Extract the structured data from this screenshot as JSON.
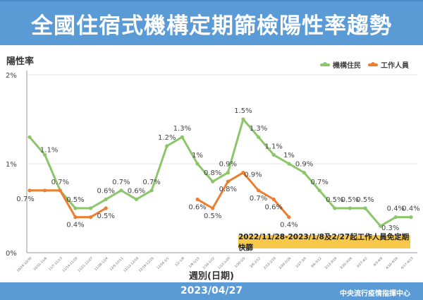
{
  "header": {
    "title": "全國住宿式機構定期篩檢陽性率趨勢"
  },
  "footer": {
    "date": "2023/04/27",
    "org": "中央流行疫情指揮中心"
  },
  "colors": {
    "header_bg": "#5b9bd5",
    "residents": "#8cc66b",
    "staff": "#ed7d31",
    "note_bg": "#f7c84a"
  },
  "chart_data": {
    "type": "line",
    "title": "全國住宿式機構定期篩檢陽性率趨勢",
    "ylabel": "陽性率",
    "xlabel": "週別(日期)",
    "ylim": [
      0,
      2
    ],
    "yticks": [
      "0%",
      "1%",
      "2%"
    ],
    "grid": true,
    "legend_position": "top-right",
    "categories": [
      "10/24-10/30",
      "10/31-11/6",
      "11/7-11/13",
      "11/14-11/20",
      "11/21-11/27",
      "11/28-12/4",
      "12/5-12/11",
      "12/12-12/18",
      "12/19-12/25",
      "12/26-1/1",
      "1/2-1/8",
      "1/9-1/15",
      "1/16-1/22",
      "1/23-1/29",
      "1/30-2/5",
      "2/6-2/12",
      "2/13-2/19",
      "2/20-2/26",
      "2/27-3/5",
      "3/6-3/12",
      "3/13-3/19",
      "3/20-3/26",
      "3/27-4/2",
      "4/3-4/9",
      "4/10-4/16",
      "4/17-4/23"
    ],
    "series": [
      {
        "name": "機構住民",
        "color": "#8cc66b",
        "values": [
          1.3,
          1.1,
          0.7,
          0.5,
          0.5,
          0.6,
          0.7,
          0.6,
          0.7,
          1.2,
          1.3,
          1.0,
          0.8,
          0.9,
          1.5,
          1.3,
          1.1,
          1.0,
          0.9,
          0.7,
          0.5,
          0.5,
          0.5,
          0.3,
          0.4,
          0.4
        ],
        "labels": [
          null,
          "1.1%",
          "0.7%",
          "0.5%",
          null,
          "0.6%",
          "0.7%",
          "0.6%",
          "0.7%",
          "1.2%",
          "1.3%",
          "1%",
          "0.8%",
          "0.9%",
          "1.5%",
          "1.3%",
          "1.1%",
          "1%",
          "0.9%",
          "0.7%",
          "0.5%",
          "0.5%",
          "0.5%",
          "0.3%",
          "0.4%",
          "0.4%"
        ]
      },
      {
        "name": "工作人員",
        "color": "#ed7d31",
        "values": [
          0.7,
          0.7,
          0.7,
          0.4,
          0.4,
          0.5,
          null,
          null,
          null,
          null,
          null,
          0.6,
          0.5,
          0.8,
          0.9,
          0.7,
          0.6,
          0.4,
          null,
          null,
          null,
          null,
          null,
          null,
          null,
          null
        ],
        "labels": [
          "0.7%",
          null,
          null,
          "0.4%",
          null,
          "0.5%",
          null,
          null,
          null,
          null,
          null,
          "0.6%",
          "0.5%",
          "0.8%",
          "0.9%",
          "0.7%",
          "0.6%",
          "0.4%",
          null,
          null,
          null,
          null,
          null,
          null,
          null,
          null
        ]
      }
    ],
    "annotation": "2022/11/28-2023/1/8及2/27起工作人員免定期快篩"
  }
}
